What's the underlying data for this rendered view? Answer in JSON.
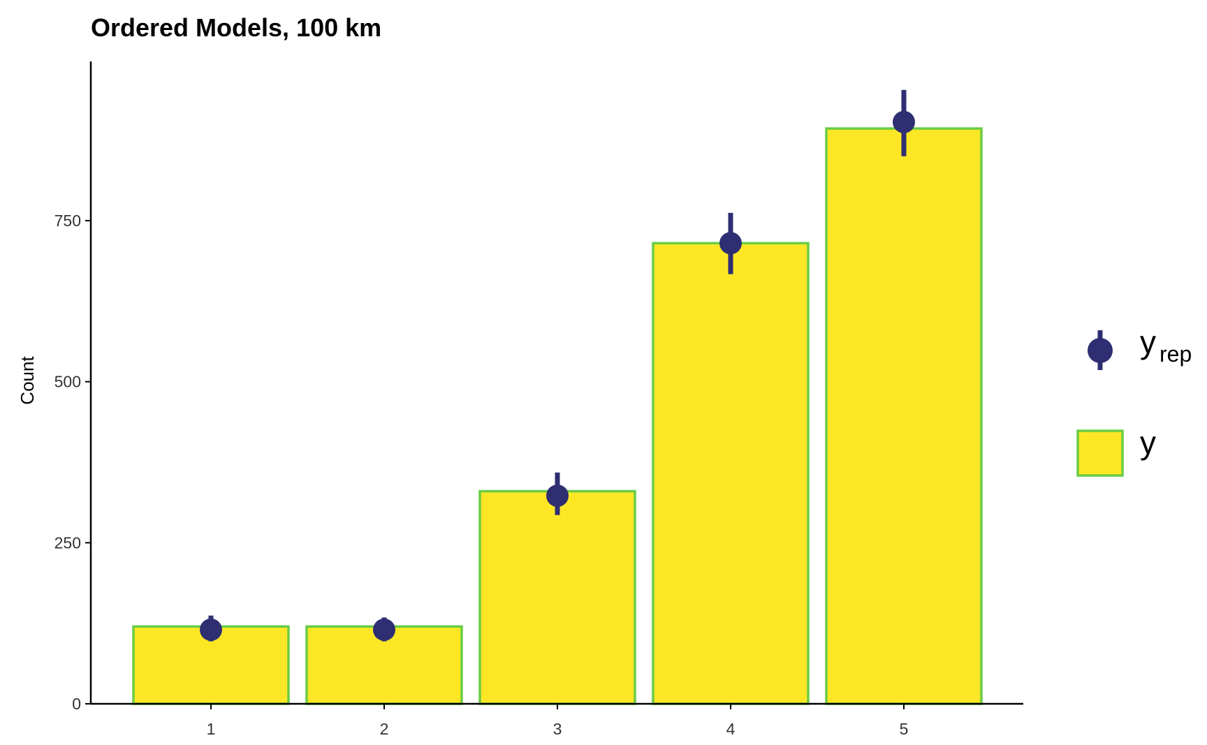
{
  "chart_data": {
    "type": "bar",
    "title": "Ordered Models, 100 km",
    "xlabel": "",
    "ylabel": "Count",
    "categories": [
      "1",
      "2",
      "3",
      "4",
      "5"
    ],
    "ylim": [
      0,
      1000
    ],
    "yticks": [
      0,
      250,
      500,
      750
    ],
    "grid": false,
    "legend_position": "right",
    "series": [
      {
        "name": "y",
        "kind": "bar",
        "values": [
          120,
          120,
          330,
          715,
          893
        ]
      },
      {
        "name": "y_rep",
        "kind": "pointrange",
        "values": [
          115,
          115,
          323,
          715,
          903
        ],
        "lower": [
          97,
          97,
          293,
          667,
          850
        ],
        "upper": [
          137,
          134,
          359,
          762,
          953
        ]
      }
    ],
    "legend": [
      {
        "key": "y_rep",
        "label": "y",
        "subscript": "rep"
      },
      {
        "key": "y",
        "label": "y"
      }
    ],
    "colors": {
      "bar_fill": "#fde725",
      "bar_outline": "#6acc44",
      "point": "#2f2e73",
      "axis": "#000000"
    }
  }
}
